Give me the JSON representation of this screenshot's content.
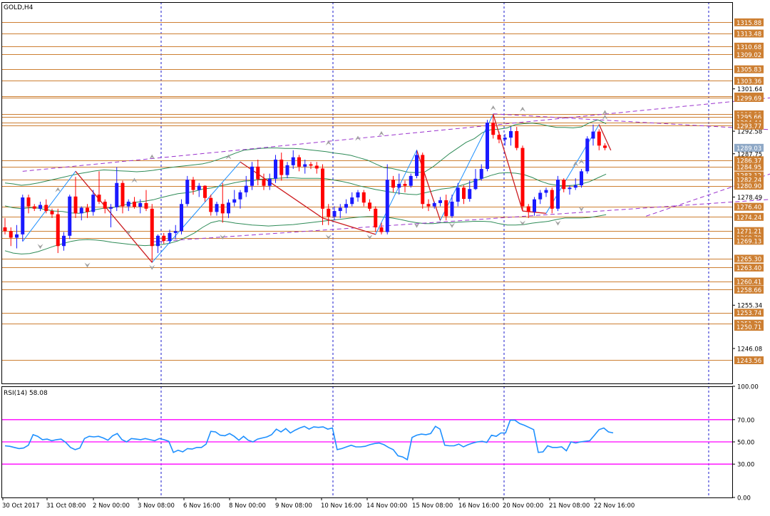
{
  "chart_data": {
    "type": "candlestick",
    "symbol_label": "GOLD,H4",
    "price_axis": {
      "ylim": [
        1238.6,
        1320.2
      ],
      "ticks": [
        1301.64,
        1292.58,
        1287.75,
        1278.49,
        1255.34,
        1246.08
      ],
      "level_labels": [
        1315.88,
        1313.48,
        1310.68,
        1309.02,
        1305.83,
        1303.36,
        1300.0,
        1299.69,
        1296.19,
        1295.66,
        1294.44,
        1293.77,
        1289.03,
        1286.37,
        1284.95,
        1283.12,
        1282.24,
        1280.9,
        1276.4,
        1274.24,
        1271.21,
        1269.79,
        1269.13,
        1265.3,
        1263.4,
        1260.41,
        1258.66,
        1253.74,
        1251.39,
        1250.71,
        1243.56
      ],
      "current_price": 1289.03
    },
    "horizontal_levels": [
      1315.88,
      1313.48,
      1310.68,
      1309.02,
      1305.83,
      1303.36,
      1300.0,
      1299.69,
      1296.19,
      1295.66,
      1294.44,
      1293.77,
      1286.37,
      1284.95,
      1282.24,
      1280.9,
      1276.4,
      1274.24,
      1271.21,
      1269.79,
      1265.3,
      1263.4,
      1260.41,
      1258.66,
      1253.74,
      1251.39,
      1243.56
    ],
    "time_labels": [
      "30 Oct 2017",
      "31 Oct 08:00",
      "2 Nov 00:00",
      "3 Nov 08:00",
      "6 Nov 16:00",
      "8 Nov 00:00",
      "9 Nov 08:00",
      "10 Nov 16:00",
      "14 Nov 00:00",
      "15 Nov 08:00",
      "16 Nov 16:00",
      "20 Nov 00:00",
      "21 Nov 08:00",
      "22 Nov 16:00"
    ],
    "candles_ohlc": [
      [
        1272.0,
        1274.0,
        1270.5,
        1271.2
      ],
      [
        1271.2,
        1272.0,
        1268.0,
        1269.8
      ],
      [
        1269.8,
        1272.5,
        1267.5,
        1270.5
      ],
      [
        1270.5,
        1279.0,
        1269.0,
        1278.4
      ],
      [
        1278.4,
        1279.0,
        1275.0,
        1276.5
      ],
      [
        1276.5,
        1277.0,
        1275.5,
        1276.0
      ],
      [
        1276.0,
        1277.5,
        1275.5,
        1276.8
      ],
      [
        1276.8,
        1278.0,
        1275.0,
        1275.5
      ],
      [
        1275.5,
        1276.0,
        1274.0,
        1274.8
      ],
      [
        1274.8,
        1276.0,
        1266.5,
        1268.0
      ],
      [
        1268.0,
        1271.0,
        1267.0,
        1270.2
      ],
      [
        1270.2,
        1279.0,
        1269.5,
        1278.6
      ],
      [
        1278.6,
        1282.8,
        1274.0,
        1275.0
      ],
      [
        1275.0,
        1276.5,
        1273.5,
        1276.2
      ],
      [
        1276.2,
        1277.0,
        1274.0,
        1275.3
      ],
      [
        1275.3,
        1280.0,
        1274.5,
        1279.0
      ],
      [
        1279.0,
        1284.0,
        1277.0,
        1277.5
      ],
      [
        1277.5,
        1278.0,
        1275.0,
        1276.0
      ],
      [
        1276.0,
        1277.0,
        1272.0,
        1276.3
      ],
      [
        1276.3,
        1284.9,
        1275.5,
        1281.5
      ],
      [
        1281.5,
        1282.0,
        1275.0,
        1276.5
      ],
      [
        1276.5,
        1278.0,
        1275.5,
        1277.5
      ],
      [
        1277.5,
        1278.5,
        1276.0,
        1276.4
      ],
      [
        1276.4,
        1278.0,
        1275.0,
        1277.2
      ],
      [
        1277.2,
        1280.0,
        1275.5,
        1276.0
      ],
      [
        1276.0,
        1277.0,
        1264.5,
        1268.0
      ],
      [
        1268.0,
        1270.5,
        1266.5,
        1270.2
      ],
      [
        1270.2,
        1270.8,
        1268.5,
        1269.1
      ],
      [
        1269.1,
        1271.5,
        1268.5,
        1270.8
      ],
      [
        1270.8,
        1272.5,
        1269.5,
        1271.2
      ],
      [
        1271.2,
        1278.0,
        1270.5,
        1277.0
      ],
      [
        1277.0,
        1283.0,
        1276.5,
        1282.2
      ],
      [
        1282.2,
        1282.8,
        1279.0,
        1280.0
      ],
      [
        1280.0,
        1281.5,
        1278.5,
        1280.9
      ],
      [
        1280.9,
        1281.0,
        1277.5,
        1278.3
      ],
      [
        1278.3,
        1279.0,
        1274.5,
        1275.3
      ],
      [
        1275.3,
        1277.5,
        1274.5,
        1277.0
      ],
      [
        1277.0,
        1281.5,
        1273.0,
        1275.0
      ],
      [
        1275.0,
        1278.0,
        1274.0,
        1277.3
      ],
      [
        1277.3,
        1280.0,
        1276.5,
        1278.0
      ],
      [
        1278.0,
        1280.0,
        1276.0,
        1279.5
      ],
      [
        1279.5,
        1283.0,
        1278.5,
        1280.9
      ],
      [
        1280.9,
        1286.0,
        1280.0,
        1285.0
      ],
      [
        1285.0,
        1286.5,
        1281.0,
        1282.3
      ],
      [
        1282.3,
        1283.5,
        1280.0,
        1280.9
      ],
      [
        1280.9,
        1283.5,
        1280.0,
        1282.4
      ],
      [
        1282.4,
        1287.5,
        1281.5,
        1286.5
      ],
      [
        1286.5,
        1288.0,
        1282.0,
        1283.2
      ],
      [
        1283.2,
        1286.0,
        1282.5,
        1285.3
      ],
      [
        1285.3,
        1288.5,
        1284.5,
        1287.0
      ],
      [
        1287.0,
        1287.5,
        1284.0,
        1285.0
      ],
      [
        1285.0,
        1286.5,
        1283.5,
        1285.5
      ],
      [
        1285.5,
        1286.0,
        1284.5,
        1285.2
      ],
      [
        1285.2,
        1286.0,
        1283.5,
        1284.6
      ],
      [
        1284.6,
        1285.5,
        1272.5,
        1276.0
      ],
      [
        1276.0,
        1277.0,
        1272.5,
        1274.3
      ],
      [
        1274.3,
        1276.5,
        1273.5,
        1275.5
      ],
      [
        1275.5,
        1277.0,
        1274.0,
        1276.2
      ],
      [
        1276.2,
        1278.0,
        1275.0,
        1277.0
      ],
      [
        1277.0,
        1279.5,
        1276.5,
        1278.4
      ],
      [
        1278.4,
        1280.0,
        1277.5,
        1279.5
      ],
      [
        1279.5,
        1280.0,
        1276.5,
        1277.3
      ],
      [
        1277.3,
        1278.0,
        1275.5,
        1276.0
      ],
      [
        1276.0,
        1276.5,
        1271.0,
        1272.0
      ],
      [
        1272.0,
        1273.0,
        1270.5,
        1271.0
      ],
      [
        1271.0,
        1285.5,
        1270.5,
        1282.2
      ],
      [
        1282.2,
        1283.0,
        1279.5,
        1280.5
      ],
      [
        1280.5,
        1283.5,
        1279.0,
        1281.3
      ],
      [
        1281.3,
        1282.0,
        1279.5,
        1280.9
      ],
      [
        1280.9,
        1283.5,
        1280.5,
        1283.0
      ],
      [
        1283.0,
        1288.5,
        1282.5,
        1287.5
      ],
      [
        1287.5,
        1288.0,
        1276.0,
        1277.0
      ],
      [
        1277.0,
        1278.0,
        1275.5,
        1276.5
      ],
      [
        1276.5,
        1277.5,
        1276.0,
        1277.2
      ],
      [
        1277.2,
        1278.5,
        1276.5,
        1277.8
      ],
      [
        1277.8,
        1279.0,
        1273.5,
        1274.4
      ],
      [
        1274.4,
        1279.0,
        1274.0,
        1277.5
      ],
      [
        1277.5,
        1281.5,
        1276.5,
        1280.5
      ],
      [
        1280.5,
        1281.0,
        1277.0,
        1278.1
      ],
      [
        1278.1,
        1282.0,
        1277.5,
        1280.2
      ],
      [
        1280.2,
        1284.5,
        1280.0,
        1282.4
      ],
      [
        1282.4,
        1285.5,
        1282.0,
        1284.5
      ],
      [
        1284.5,
        1295.0,
        1284.0,
        1294.4
      ],
      [
        1294.4,
        1296.2,
        1291.0,
        1291.8
      ],
      [
        1291.8,
        1292.5,
        1290.0,
        1290.8
      ],
      [
        1290.8,
        1292.0,
        1289.5,
        1291.2
      ],
      [
        1291.2,
        1293.5,
        1289.5,
        1292.6
      ],
      [
        1292.6,
        1293.5,
        1288.5,
        1289.0
      ],
      [
        1289.0,
        1289.5,
        1275.5,
        1276.5
      ],
      [
        1276.5,
        1277.0,
        1274.0,
        1275.3
      ],
      [
        1275.3,
        1278.5,
        1274.5,
        1278.0
      ],
      [
        1278.0,
        1280.0,
        1277.0,
        1279.4
      ],
      [
        1279.4,
        1280.5,
        1278.5,
        1280.0
      ],
      [
        1280.0,
        1280.5,
        1275.0,
        1276.0
      ],
      [
        1276.0,
        1283.0,
        1275.5,
        1282.2
      ],
      [
        1282.2,
        1282.5,
        1279.5,
        1280.2
      ],
      [
        1280.2,
        1281.0,
        1279.0,
        1280.5
      ],
      [
        1280.5,
        1282.5,
        1280.0,
        1281.0
      ],
      [
        1281.0,
        1284.5,
        1280.5,
        1284.0
      ],
      [
        1284.0,
        1291.5,
        1283.5,
        1291.0
      ],
      [
        1291.0,
        1294.0,
        1289.5,
        1292.5
      ],
      [
        1292.5,
        1293.0,
        1288.5,
        1289.5
      ],
      [
        1289.5,
        1290.0,
        1288.5,
        1289.0
      ]
    ],
    "channels": [
      {
        "from": [
          3,
          1284.0
        ],
        "to": [
          151,
          1302.3
        ],
        "color": "#9a32cd",
        "dashed": true
      },
      {
        "from": [
          25,
          1268.9
        ],
        "to": [
          151,
          1279.8
        ],
        "color": "#9a32cd",
        "dashed": true
      },
      {
        "from": [
          83,
          1296.3
        ],
        "to": [
          151,
          1291.4
        ],
        "color": "#9a32cd",
        "dashed": true
      },
      {
        "from": [
          109,
          1274.4
        ],
        "to": [
          151,
          1292.4
        ],
        "color": "#9a32cd",
        "dashed": true
      }
    ],
    "zigzag_red": [
      [
        3,
        1269.0
      ],
      [
        12,
        1284.0
      ],
      [
        25,
        1264.5
      ],
      [
        40,
        1286.0
      ],
      [
        54,
        1274.0
      ],
      [
        63,
        1270.5
      ],
      [
        70,
        1288.5
      ],
      [
        74,
        1273.5
      ],
      [
        83,
        1296.2
      ],
      [
        88,
        1275.5
      ],
      [
        92,
        1275.0
      ],
      [
        101,
        1294.0
      ],
      [
        103,
        1288.5
      ]
    ],
    "bollinger_mid": [
      1276.6,
      1276.2,
      1276.0,
      1276.2,
      1276.1,
      1275.8,
      1275.5,
      1275.4,
      1275.1,
      1275.0,
      1275.3,
      1275.8,
      1276.1,
      1276.2,
      1276.6,
      1277.0,
      1277.4,
      1277.6,
      1277.9,
      1278.4,
      1278.8,
      1279.2,
      1279.4,
      1279.7,
      1280.2,
      1280.4,
      1280.8,
      1281.2,
      1281.6,
      1281.9,
      1282.0,
      1282.3,
      1282.4,
      1282.5,
      1282.6,
      1282.6,
      1282.5,
      1282.5,
      1282.5,
      1282.4,
      1282.1,
      1281.8,
      1281.4,
      1280.9,
      1280.5,
      1280.1,
      1279.8,
      1279.5,
      1279.3,
      1279.1,
      1279.0,
      1279.4,
      1279.8,
      1280.2,
      1280.4,
      1280.8,
      1281.3,
      1281.9,
      1282.5,
      1283.1,
      1283.6,
      1283.7,
      1283.6,
      1283.3,
      1282.7,
      1281.9,
      1281.3,
      1281.0,
      1280.9,
      1281.0,
      1281.3,
      1281.8,
      1282.6,
      1283.4
    ],
    "bollinger_lower": [
      1267.0,
      1266.5,
      1266.3,
      1266.4,
      1266.8,
      1267.4,
      1268.0,
      1268.5,
      1269.0,
      1269.3,
      1269.4,
      1269.3,
      1269.1,
      1268.8,
      1268.6,
      1268.4,
      1268.2,
      1268.1,
      1268.2,
      1268.3,
      1268.6,
      1269.1,
      1269.9,
      1270.8,
      1272.0,
      1273.0,
      1273.4,
      1273.2,
      1272.9,
      1272.7,
      1272.5,
      1272.4,
      1272.3,
      1272.4,
      1272.5,
      1272.6,
      1272.8,
      1273.0,
      1273.2,
      1273.4,
      1273.6,
      1273.8,
      1274.0,
      1274.2,
      1274.3,
      1274.3,
      1274.2,
      1274.0,
      1273.7,
      1273.3,
      1273.0,
      1272.8,
      1272.8,
      1273.0,
      1273.0,
      1273.1,
      1273.2,
      1273.3,
      1273.3,
      1273.2,
      1272.8,
      1272.5,
      1272.5,
      1272.6,
      1272.9,
      1273.1,
      1273.3,
      1273.7,
      1274.0,
      1274.0,
      1274.0,
      1274.1,
      1274.4,
      1274.7
    ],
    "bollinger_upper": [
      1281.5,
      1281.3,
      1281.0,
      1281.2,
      1281.5,
      1281.9,
      1282.3,
      1282.7,
      1283.1,
      1283.5,
      1283.8,
      1284.1,
      1284.3,
      1284.2,
      1284.1,
      1284.0,
      1283.9,
      1284.0,
      1284.2,
      1284.5,
      1284.8,
      1285.0,
      1285.2,
      1285.4,
      1285.6,
      1286.0,
      1286.6,
      1287.2,
      1287.9,
      1288.5,
      1288.7,
      1288.9,
      1289.0,
      1289.0,
      1288.9,
      1288.9,
      1288.8,
      1288.6,
      1288.4,
      1288.2,
      1287.9,
      1287.7,
      1287.4,
      1286.9,
      1286.4,
      1285.6,
      1284.8,
      1284.6,
      1284.2,
      1283.8,
      1283.7,
      1283.9,
      1285.0,
      1286.4,
      1287.8,
      1289.0,
      1290.2,
      1291.0,
      1292.3,
      1292.9,
      1293.0,
      1293.3,
      1294.0,
      1294.2,
      1294.3,
      1294.1,
      1293.7,
      1293.4,
      1293.4,
      1293.3,
      1293.5,
      1294.4,
      1295.0,
      1294.2
    ],
    "band_start_index": 0,
    "band_step": 1.4,
    "fractals_up": [
      [
        9,
        1280.0
      ],
      [
        22,
        1282.0
      ],
      [
        25,
        1287.0
      ],
      [
        38,
        1287.0
      ],
      [
        55,
        1290.0
      ],
      [
        60,
        1291.0
      ],
      [
        64,
        1292.0
      ],
      [
        83,
        1297.5
      ],
      [
        88,
        1297.2
      ],
      [
        97,
        1285.5
      ],
      [
        98,
        1286.0
      ],
      [
        102,
        1295.5
      ],
      [
        102,
        1296.5
      ]
    ],
    "fractals_down": [
      [
        6,
        1268.0
      ],
      [
        14,
        1264.0
      ],
      [
        21,
        1271.0
      ],
      [
        25,
        1263.5
      ],
      [
        37,
        1270.0
      ],
      [
        55,
        1270.0
      ],
      [
        62,
        1270.0
      ],
      [
        70,
        1272.5
      ],
      [
        76,
        1272.5
      ],
      [
        88,
        1273.0
      ],
      [
        94,
        1273.0
      ],
      [
        98,
        1276.0
      ]
    ],
    "rsi": {
      "label": "RSI(14) 58.08",
      "ylim": [
        0,
        100
      ],
      "ticks": [
        100.0,
        70.0,
        50.0,
        30.0,
        0.0
      ],
      "levels": [
        70,
        50,
        30
      ],
      "values": [
        46.5,
        46.0,
        45.0,
        44.0,
        44.5,
        47.0,
        56.5,
        55.0,
        52.0,
        52.5,
        51.0,
        52.0,
        52.5,
        49.5,
        45.0,
        43.0,
        44.5,
        53.0,
        55.0,
        54.5,
        55.0,
        53.5,
        51.5,
        55.5,
        57.5,
        52.0,
        50.0,
        53.0,
        52.5,
        52.0,
        53.0,
        52.0,
        51.0,
        53.0,
        52.0,
        50.5,
        40.5,
        42.5,
        41.0,
        44.0,
        43.5,
        45.0,
        45.0,
        48.0,
        59.5,
        59.0,
        56.0,
        55.5,
        57.5,
        55.0,
        51.5,
        55.0,
        51.5,
        50.0,
        52.5,
        53.5,
        54.5,
        56.5,
        61.5,
        59.0,
        62.0,
        58.0,
        60.5,
        62.5,
        64.0,
        61.5,
        63.5,
        63.0,
        63.5,
        61.5,
        62.5,
        43.0,
        44.0,
        45.5,
        47.0,
        45.5,
        45.5,
        46.0,
        47.5,
        48.5,
        49.0,
        47.5,
        45.0,
        43.0,
        37.5,
        36.5,
        34.0,
        54.0,
        56.0,
        57.0,
        56.5,
        57.5,
        64.0,
        61.5,
        47.0,
        46.5,
        46.5,
        48.0,
        45.5,
        47.5,
        49.0,
        50.0,
        50.5,
        49.5,
        56.0,
        55.0,
        58.0,
        58.0,
        69.5,
        69.5,
        66.5,
        65.0,
        63.0,
        61.0,
        40.5,
        41.0,
        46.5,
        45.0,
        45.0,
        45.5,
        42.0,
        50.0,
        49.0,
        50.0,
        50.5,
        51.0,
        56.0,
        61.0,
        62.5,
        59.0,
        58.08
      ],
      "colors": {
        "line": "#1e90ff",
        "levels": "#ff00ff"
      }
    },
    "colors": {
      "bull": "#1a1aff",
      "bear": "#ff0000",
      "level_line": "#cd7f32",
      "label_box": "#cd7f32",
      "current_box": "#8ea8c6",
      "grid_vertical": "#1a1acc",
      "band": "#2e8b57",
      "zigzag_blue": "#1e90ff",
      "zigzag_red": "#d42020",
      "fractal": "#a0a0a0"
    }
  }
}
